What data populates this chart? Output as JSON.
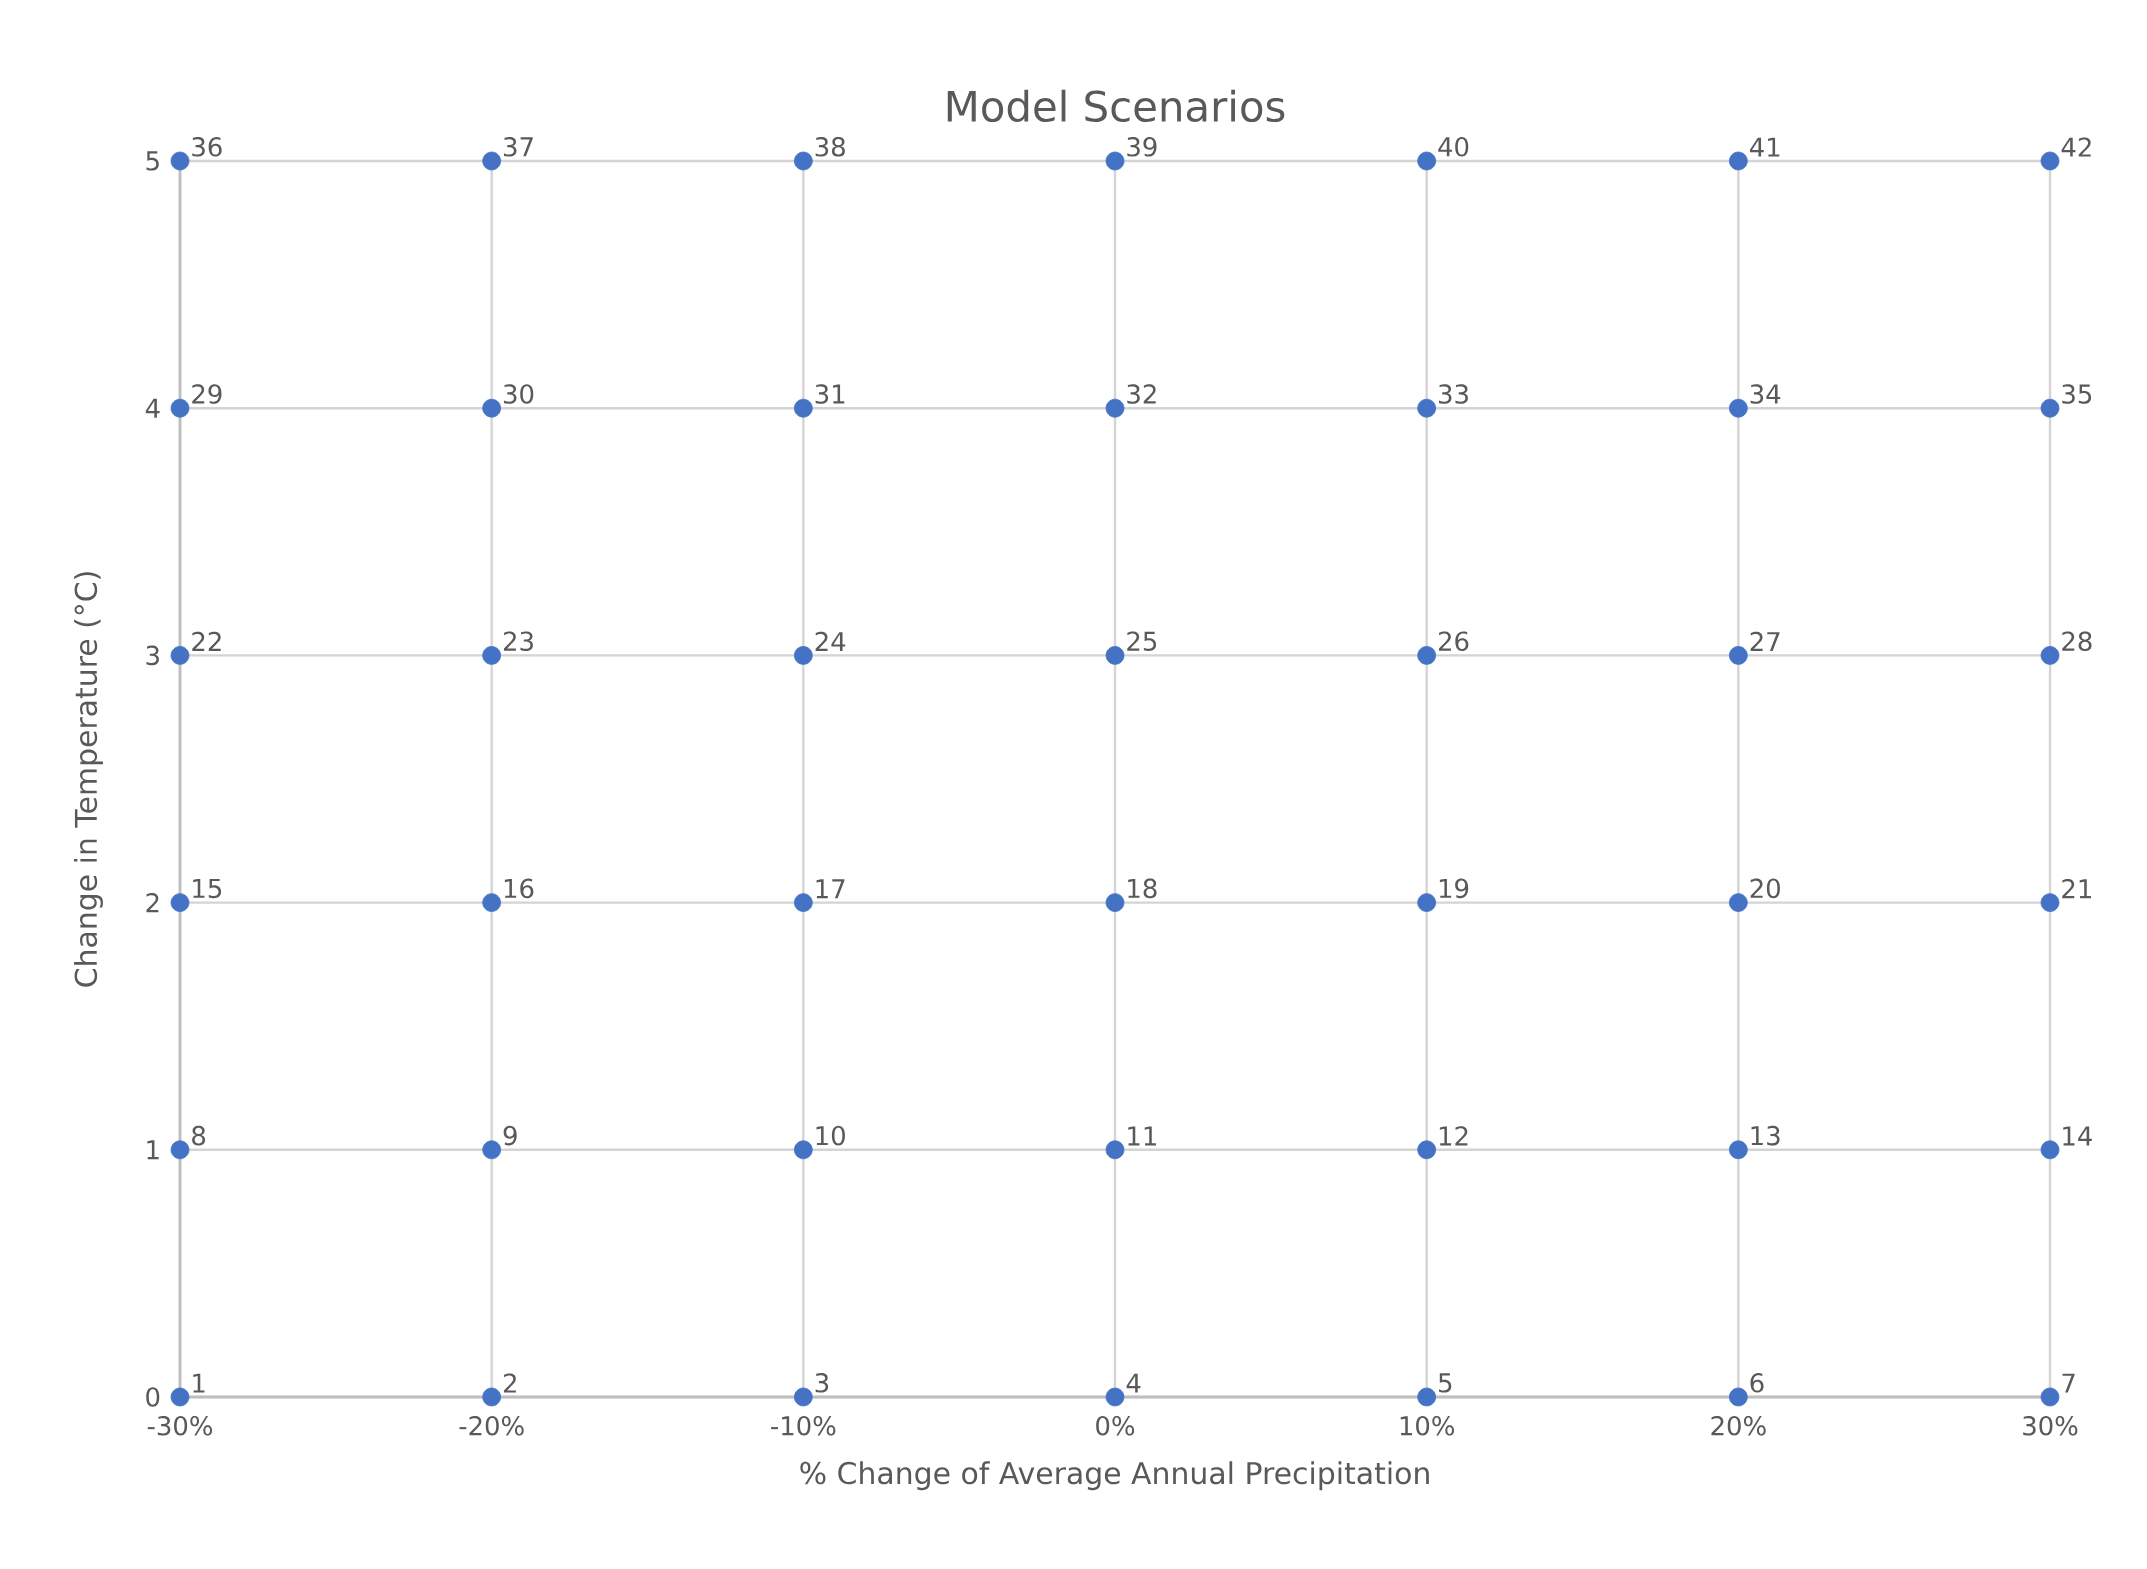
{
  "chart_data": {
    "type": "scatter",
    "title": "Model Scenarios",
    "xlabel": "% Change of Average Annual Precipitation",
    "ylabel": "Change in Temperature (°C)",
    "marker": "circle",
    "x": [
      -30,
      -20,
      -10,
      0,
      10,
      20,
      30,
      -30,
      -20,
      -10,
      0,
      10,
      20,
      30,
      -30,
      -20,
      -10,
      0,
      10,
      20,
      30,
      -30,
      -20,
      -10,
      0,
      10,
      20,
      30,
      -30,
      -20,
      -10,
      0,
      10,
      20,
      30,
      -30,
      -20,
      -10,
      0,
      10,
      20,
      30
    ],
    "series": [
      {
        "color": "#4472c4",
        "values": [
          0,
          0,
          0,
          0,
          0,
          0,
          0,
          1,
          1,
          1,
          1,
          1,
          1,
          1,
          2,
          2,
          2,
          2,
          2,
          2,
          2,
          3,
          3,
          3,
          3,
          3,
          3,
          3,
          4,
          4,
          4,
          4,
          4,
          4,
          4,
          5,
          5,
          5,
          5,
          5,
          5,
          5
        ]
      }
    ],
    "annotations": [
      {
        "text": "1",
        "x": -30,
        "y": 0
      },
      {
        "text": "2",
        "x": -20,
        "y": 0
      },
      {
        "text": "3",
        "x": -10,
        "y": 0
      },
      {
        "text": "4",
        "x": 0,
        "y": 0
      },
      {
        "text": "5",
        "x": 10,
        "y": 0
      },
      {
        "text": "6",
        "x": 20,
        "y": 0
      },
      {
        "text": "7",
        "x": 30,
        "y": 0
      },
      {
        "text": "8",
        "x": -30,
        "y": 1
      },
      {
        "text": "9",
        "x": -20,
        "y": 1
      },
      {
        "text": "10",
        "x": -10,
        "y": 1
      },
      {
        "text": "11",
        "x": 0,
        "y": 1
      },
      {
        "text": "12",
        "x": 10,
        "y": 1
      },
      {
        "text": "13",
        "x": 20,
        "y": 1
      },
      {
        "text": "14",
        "x": 30,
        "y": 1
      },
      {
        "text": "15",
        "x": -30,
        "y": 2
      },
      {
        "text": "16",
        "x": -20,
        "y": 2
      },
      {
        "text": "17",
        "x": -10,
        "y": 2
      },
      {
        "text": "18",
        "x": 0,
        "y": 2
      },
      {
        "text": "19",
        "x": 10,
        "y": 2
      },
      {
        "text": "20",
        "x": 20,
        "y": 2
      },
      {
        "text": "21",
        "x": 30,
        "y": 2
      },
      {
        "text": "22",
        "x": -30,
        "y": 3
      },
      {
        "text": "23",
        "x": -20,
        "y": 3
      },
      {
        "text": "24",
        "x": -10,
        "y": 3
      },
      {
        "text": "25",
        "x": 0,
        "y": 3
      },
      {
        "text": "26",
        "x": 10,
        "y": 3
      },
      {
        "text": "27",
        "x": 20,
        "y": 3
      },
      {
        "text": "28",
        "x": 30,
        "y": 3
      },
      {
        "text": "29",
        "x": -30,
        "y": 4
      },
      {
        "text": "30",
        "x": -20,
        "y": 4
      },
      {
        "text": "31",
        "x": -10,
        "y": 4
      },
      {
        "text": "32",
        "x": 0,
        "y": 4
      },
      {
        "text": "33",
        "x": 10,
        "y": 4
      },
      {
        "text": "34",
        "x": 20,
        "y": 4
      },
      {
        "text": "35",
        "x": 30,
        "y": 4
      },
      {
        "text": "36",
        "x": -30,
        "y": 5
      },
      {
        "text": "37",
        "x": -20,
        "y": 5
      },
      {
        "text": "38",
        "x": -10,
        "y": 5
      },
      {
        "text": "39",
        "x": 0,
        "y": 5
      },
      {
        "text": "40",
        "x": 10,
        "y": 5
      },
      {
        "text": "41",
        "x": 20,
        "y": 5
      },
      {
        "text": "42",
        "x": 30,
        "y": 5
      }
    ],
    "xlim": [
      -30,
      30
    ],
    "ylim": [
      0,
      5
    ],
    "xticks": [
      {
        "value": -30,
        "label": "-30%"
      },
      {
        "value": -20,
        "label": "-20%"
      },
      {
        "value": -10,
        "label": "-10%"
      },
      {
        "value": 0,
        "label": "0%"
      },
      {
        "value": 10,
        "label": "10%"
      },
      {
        "value": 20,
        "label": "20%"
      },
      {
        "value": 30,
        "label": "30%"
      }
    ],
    "yticks": [
      0,
      1,
      2,
      3,
      4,
      5
    ],
    "grid": true
  }
}
